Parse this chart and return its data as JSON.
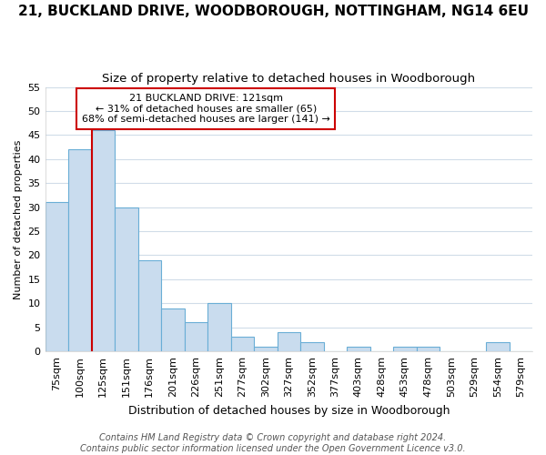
{
  "title": "21, BUCKLAND DRIVE, WOODBOROUGH, NOTTINGHAM, NG14 6EU",
  "subtitle": "Size of property relative to detached houses in Woodborough",
  "xlabel": "Distribution of detached houses by size in Woodborough",
  "ylabel": "Number of detached properties",
  "categories": [
    "75sqm",
    "100sqm",
    "125sqm",
    "151sqm",
    "176sqm",
    "201sqm",
    "226sqm",
    "251sqm",
    "277sqm",
    "302sqm",
    "327sqm",
    "352sqm",
    "377sqm",
    "403sqm",
    "428sqm",
    "453sqm",
    "478sqm",
    "503sqm",
    "529sqm",
    "554sqm",
    "579sqm"
  ],
  "values": [
    31,
    42,
    46,
    30,
    19,
    9,
    6,
    10,
    3,
    1,
    4,
    2,
    0,
    1,
    0,
    1,
    1,
    0,
    0,
    2,
    0
  ],
  "bar_color": "#c9dcee",
  "bar_edge_color": "#6aaed6",
  "red_line_index": 2,
  "annotation_title": "21 BUCKLAND DRIVE: 121sqm",
  "annotation_line1": "← 31% of detached houses are smaller (65)",
  "annotation_line2": "68% of semi-detached houses are larger (141) →",
  "annotation_box_color": "#ffffff",
  "annotation_box_edge": "#cc0000",
  "red_line_color": "#cc0000",
  "ylim": [
    0,
    55
  ],
  "yticks": [
    0,
    5,
    10,
    15,
    20,
    25,
    30,
    35,
    40,
    45,
    50,
    55
  ],
  "footnote": "Contains HM Land Registry data © Crown copyright and database right 2024.\nContains public sector information licensed under the Open Government Licence v3.0.",
  "plot_bg_color": "#ffffff",
  "fig_bg_color": "#ffffff",
  "grid_color": "#d0dce8",
  "title_fontsize": 11,
  "subtitle_fontsize": 9.5,
  "xlabel_fontsize": 9,
  "ylabel_fontsize": 8,
  "tick_fontsize": 8,
  "footnote_fontsize": 7
}
